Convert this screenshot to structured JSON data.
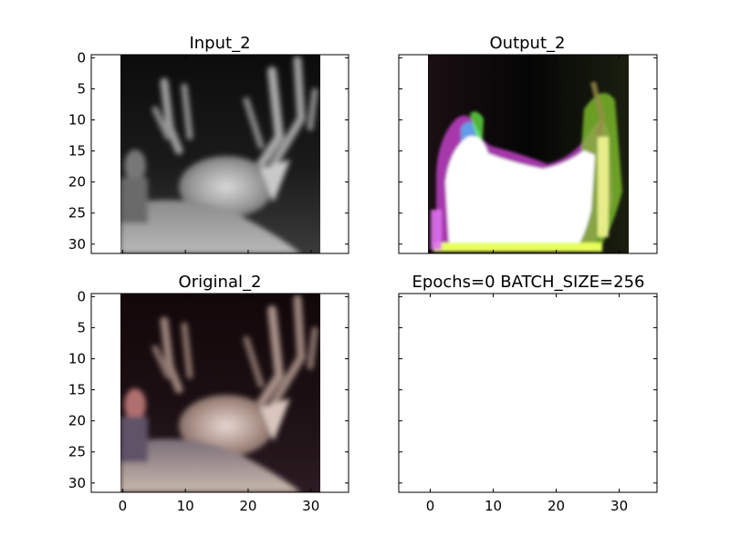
{
  "chart_data": [
    {
      "type": "image",
      "title": "Input_2",
      "image_kind": "grayscale",
      "content": "deer-head",
      "xlim": [
        -5,
        36
      ],
      "ylim": [
        31.5,
        -0.5
      ],
      "image_extent": [
        -0.5,
        31.5
      ],
      "xticks": [
        0,
        10,
        20,
        30
      ],
      "xtick_labels": [],
      "yticks": [
        0,
        5,
        10,
        15,
        20,
        25,
        30
      ],
      "ytick_labels": [
        "0",
        "5",
        "10",
        "15",
        "20",
        "25",
        "30"
      ]
    },
    {
      "type": "image",
      "title": "Output_2",
      "image_kind": "rgb-saturated",
      "content": "blown-out-reconstruction",
      "xlim": [
        -5,
        36
      ],
      "ylim": [
        31.5,
        -0.5
      ],
      "image_extent": [
        -0.5,
        31.5
      ],
      "xticks": [
        0,
        10,
        20,
        30
      ],
      "xtick_labels": [],
      "yticks": [
        0,
        5,
        10,
        15,
        20,
        25,
        30
      ],
      "ytick_labels": []
    },
    {
      "type": "image",
      "title": "Original_2",
      "image_kind": "rgb",
      "content": "deer-head",
      "xlim": [
        -5,
        36
      ],
      "ylim": [
        31.5,
        -0.5
      ],
      "image_extent": [
        -0.5,
        31.5
      ],
      "xticks": [
        0,
        10,
        20,
        30
      ],
      "xtick_labels": [
        "0",
        "10",
        "20",
        "30"
      ],
      "yticks": [
        0,
        5,
        10,
        15,
        20,
        25,
        30
      ],
      "ytick_labels": [
        "0",
        "5",
        "10",
        "15",
        "20",
        "25",
        "30"
      ]
    },
    {
      "type": "empty",
      "title": "Epochs=0 BATCH_SIZE=256",
      "content": "none",
      "xlim": [
        -5,
        36
      ],
      "ylim": [
        31.5,
        -0.5
      ],
      "xticks": [
        0,
        10,
        20,
        30
      ],
      "xtick_labels": [
        "0",
        "10",
        "20",
        "30"
      ],
      "yticks": [
        0,
        5,
        10,
        15,
        20,
        25,
        30
      ],
      "ytick_labels": []
    }
  ]
}
